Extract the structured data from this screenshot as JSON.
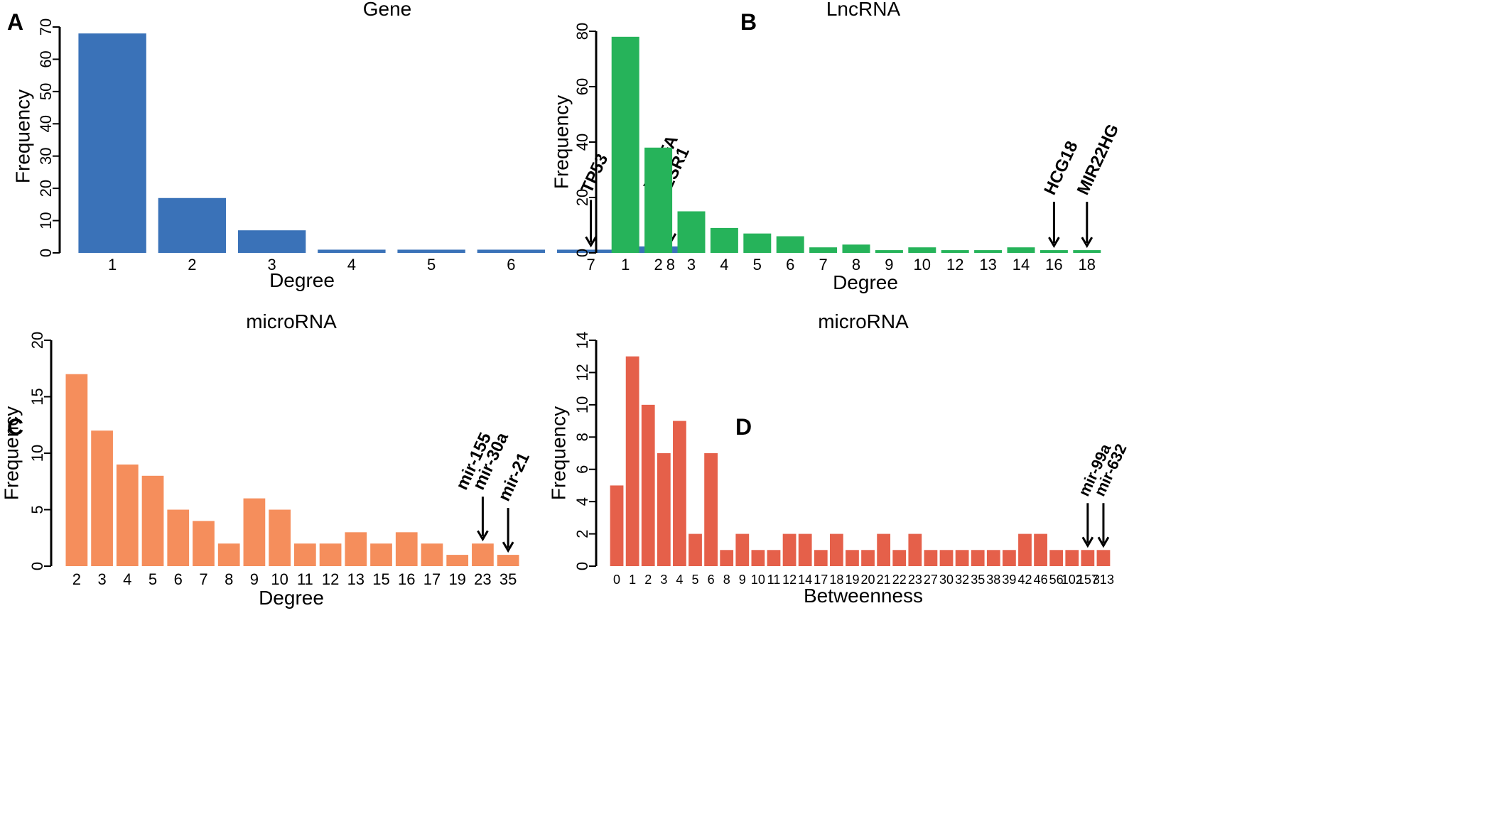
{
  "chart_data": [
    {
      "panel": "A",
      "type": "bar",
      "title": "Gene",
      "xlabel": "Degree",
      "ylabel": "Frequency",
      "color": "#3a72b8",
      "ylim": [
        0,
        70
      ],
      "yticks": [
        0,
        10,
        20,
        30,
        40,
        50,
        60,
        70
      ],
      "categories": [
        "1",
        "2",
        "3",
        "4",
        "5",
        "6",
        "7",
        "8"
      ],
      "values": [
        68,
        17,
        7,
        1,
        1,
        1,
        1,
        2
      ],
      "annotations": [
        {
          "category": "7",
          "lines": [
            "TP53"
          ]
        },
        {
          "category": "8",
          "lines": [
            "VEGFA",
            "ESR1"
          ]
        }
      ]
    },
    {
      "panel": "B",
      "type": "bar",
      "title": "LncRNA",
      "xlabel": "Degree",
      "ylabel": "Frequency",
      "color": "#26b35a",
      "ylim": [
        0,
        80
      ],
      "yticks": [
        0,
        20,
        40,
        60,
        80
      ],
      "categories": [
        "1",
        "2",
        "3",
        "4",
        "5",
        "6",
        "7",
        "8",
        "9",
        "10",
        "12",
        "13",
        "14",
        "16",
        "18"
      ],
      "values": [
        78,
        38,
        15,
        9,
        7,
        6,
        2,
        3,
        1,
        2,
        1,
        1,
        2,
        1,
        1
      ],
      "annotations": [
        {
          "category": "16",
          "lines": [
            "HCG18"
          ]
        },
        {
          "category": "18",
          "lines": [
            "MIR22HG"
          ]
        }
      ]
    },
    {
      "panel": "C",
      "type": "bar",
      "title": "microRNA",
      "xlabel": "Degree",
      "ylabel": "Frequency",
      "color": "#f58e5c",
      "ylim": [
        0,
        20
      ],
      "yticks": [
        0,
        5,
        10,
        15,
        20
      ],
      "categories": [
        "2",
        "3",
        "4",
        "5",
        "6",
        "7",
        "8",
        "9",
        "10",
        "11",
        "12",
        "13",
        "15",
        "16",
        "17",
        "19",
        "23",
        "35"
      ],
      "values": [
        17,
        12,
        9,
        8,
        5,
        4,
        2,
        6,
        5,
        2,
        2,
        3,
        2,
        3,
        2,
        1,
        2,
        1
      ],
      "annotations": [
        {
          "category": "23",
          "lines": [
            "mir-155",
            "mir-30a"
          ]
        },
        {
          "category": "35",
          "lines": [
            "mir-21"
          ]
        }
      ]
    },
    {
      "panel": "D",
      "type": "bar",
      "title": "microRNA",
      "xlabel": "Betweenness",
      "ylabel": "Frequency",
      "color": "#e5604a",
      "ylim": [
        0,
        14
      ],
      "yticks": [
        0,
        2,
        4,
        6,
        8,
        10,
        12,
        14
      ],
      "categories": [
        "0",
        "1",
        "2",
        "3",
        "4",
        "5",
        "6",
        "8",
        "9",
        "10",
        "11",
        "12",
        "14",
        "17",
        "18",
        "19",
        "20",
        "21",
        "22",
        "23",
        "27",
        "30",
        "32",
        "35",
        "38",
        "39",
        "42",
        "46",
        "56",
        "102",
        "157",
        "313"
      ],
      "values": [
        5,
        13,
        10,
        7,
        9,
        2,
        7,
        1,
        2,
        1,
        1,
        2,
        2,
        1,
        2,
        1,
        1,
        2,
        1,
        2,
        1,
        1,
        1,
        1,
        1,
        1,
        2,
        2,
        1,
        1,
        1,
        1
      ],
      "annotations": [
        {
          "category": "157",
          "lines": [
            "mir-99a"
          ]
        },
        {
          "category": "313",
          "lines": [
            "mir-632"
          ]
        }
      ]
    }
  ]
}
